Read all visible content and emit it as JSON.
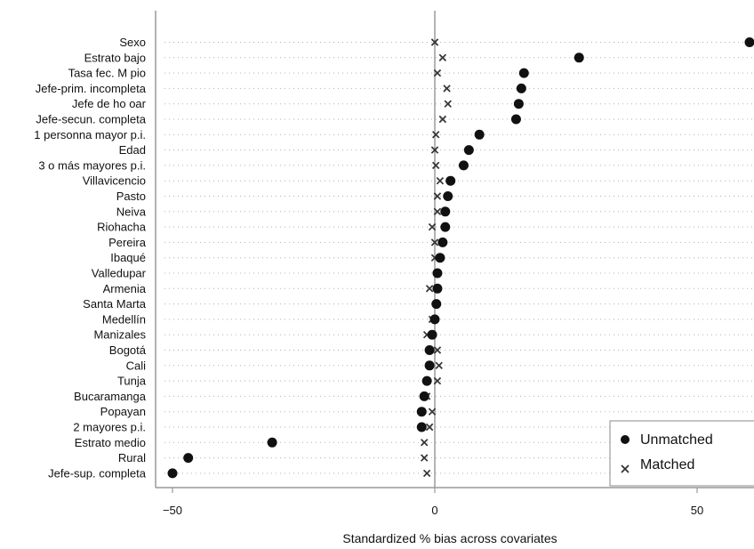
{
  "chart_data": {
    "type": "scatter",
    "title": "",
    "xlabel": "Standardized % bias across covariates",
    "ylabel": "",
    "xlim": [
      -55,
      62
    ],
    "xticks": [
      -50,
      0,
      50
    ],
    "xtick_labels": [
      "−50",
      "0",
      "50"
    ],
    "grid": true,
    "zero_line": true,
    "legend_position": "bottom-right",
    "categories": [
      "Sexo",
      "Estrato bajo",
      "Tasa fec. M pio",
      "Jefe-prim. incompleta",
      "Jefe de ho oar",
      "Jefe-secun. completa",
      "1 personna mayor p.i.",
      "Edad",
      "3 o más mayores p.i.",
      "Villavicencio",
      "Pasto",
      "Neiva",
      "Riohacha",
      "Pereira",
      "Ibaqué",
      "Valledupar",
      "Armenia",
      "Santa Marta",
      "Medellín",
      "Manizales",
      "Bogotá",
      "Cali",
      "Tunja",
      "Bucaramanga",
      "Popayan",
      "2 mayores p.i.",
      "Estrato medio",
      "Rural",
      "Jefe-sup. completa"
    ],
    "series": [
      {
        "name": "Unmatched",
        "marker": "circle",
        "color": "#111111",
        "values": [
          60,
          27.5,
          17,
          16.5,
          16,
          15.5,
          8.5,
          6.5,
          5.5,
          3,
          2.5,
          2,
          2,
          1.5,
          1,
          0.5,
          0.5,
          0.3,
          0,
          -0.5,
          -1,
          -1,
          -1.5,
          -2,
          -2.5,
          -2.5,
          -31,
          -47,
          -50
        ]
      },
      {
        "name": "Matched",
        "marker": "x",
        "color": "#333333",
        "values": [
          0,
          1.5,
          0.5,
          2.3,
          2.5,
          1.5,
          0.2,
          0,
          0.2,
          1,
          0.5,
          0.5,
          -0.5,
          0,
          0,
          0.5,
          -1,
          0.3,
          -0.5,
          -1.5,
          0.5,
          0.8,
          0.5,
          -1.5,
          -0.5,
          -1,
          -2,
          -2,
          -1.5
        ]
      }
    ]
  }
}
